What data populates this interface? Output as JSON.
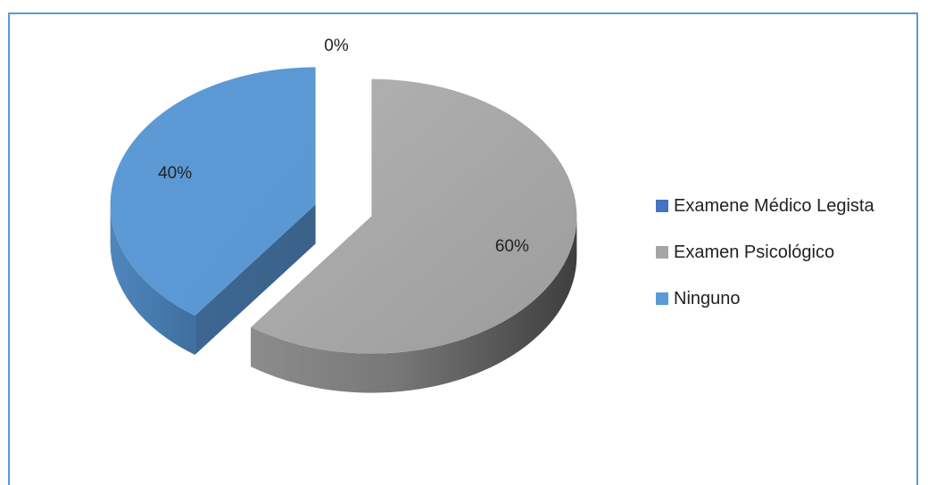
{
  "chart_data": {
    "type": "pie",
    "style": "3d-exploded",
    "categories": [
      "Examene Médico Legista",
      "Examen Psicológico",
      "Ninguno"
    ],
    "values": [
      0,
      60,
      40
    ],
    "data_labels": [
      "0%",
      "60%",
      "40%"
    ],
    "colors": [
      "#4472c4",
      "#a5a5a5",
      "#5b9bd5"
    ],
    "legend_placement": "right"
  }
}
